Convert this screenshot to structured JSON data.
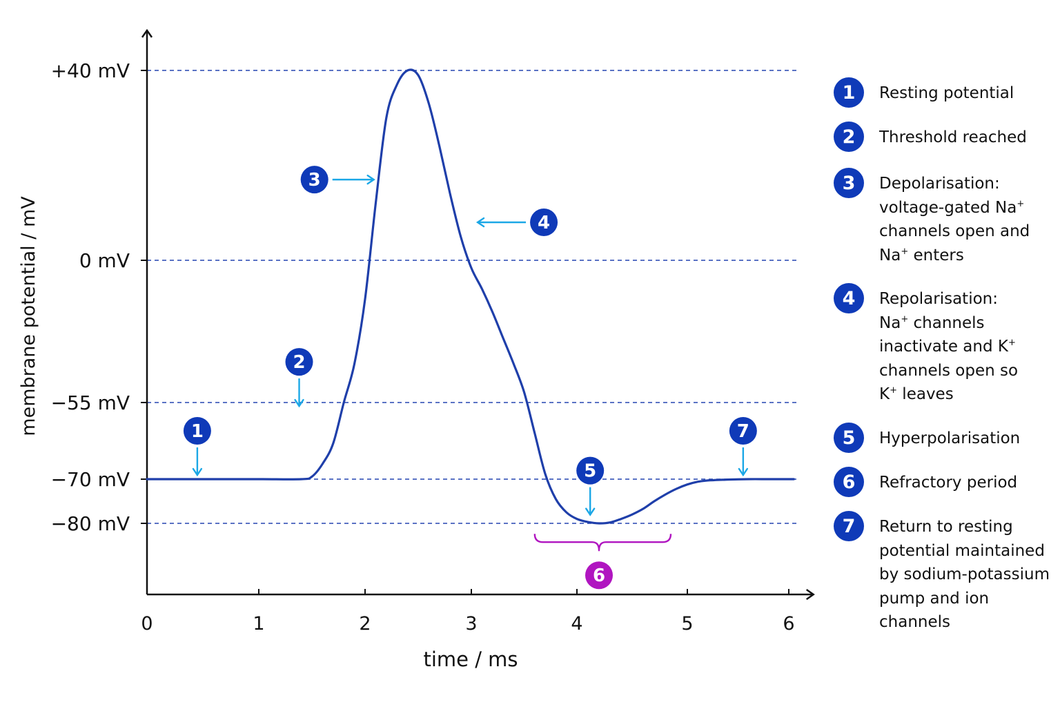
{
  "chart_data": {
    "type": "line",
    "xlabel": "time / ms",
    "ylabel": "membrane potential / mV",
    "xlim": [
      0,
      6.1
    ],
    "ylim": [
      -95,
      50
    ],
    "x_ticks": [
      "0",
      "1",
      "2",
      "3",
      "4",
      "5",
      "6"
    ],
    "y_ticks": [
      {
        "value": 40,
        "label": "+40 mV"
      },
      {
        "value": 0,
        "label": "0 mV"
      },
      {
        "value": -55,
        "label": "−55 mV"
      },
      {
        "value": -70,
        "label": "−70 mV"
      },
      {
        "value": -80,
        "label": "−80 mV"
      }
    ],
    "reference_lines": [
      40,
      0,
      -55,
      -70,
      -80
    ],
    "grid": false,
    "series": [
      {
        "x": [
          0,
          0.5,
          1.0,
          1.4,
          1.5,
          1.6,
          1.7,
          1.8,
          1.9,
          2.0,
          2.1,
          2.2,
          2.3,
          2.4,
          2.5,
          2.6,
          2.7,
          2.8,
          2.9,
          3.0,
          3.1,
          3.2,
          3.3,
          3.4,
          3.5,
          3.6,
          3.7,
          3.8,
          3.9,
          4.0,
          4.1,
          4.2,
          4.3,
          4.4,
          4.5,
          4.6,
          4.7,
          4.8,
          4.9,
          5.0,
          5.1,
          5.2,
          5.4,
          5.6,
          5.8,
          6.0,
          6.05
        ],
        "y": [
          -70,
          -70,
          -70,
          -70,
          -69.5,
          -67,
          -63,
          -55,
          -40,
          -15,
          12,
          30,
          37,
          40,
          39,
          33,
          24,
          14,
          5,
          -3,
          -11,
          -20,
          -30,
          -40,
          -51,
          -61,
          -69,
          -74.5,
          -77.5,
          -79,
          -79.7,
          -80,
          -79.8,
          -79,
          -78,
          -76.7,
          -75,
          -73.5,
          -72.2,
          -71.2,
          -70.6,
          -70.3,
          -70.1,
          -70,
          -70,
          -70,
          -70
        ]
      }
    ],
    "markers": [
      {
        "num": "1",
        "x": 0.45,
        "y": -70,
        "arrow": "down"
      },
      {
        "num": "2",
        "x": 1.38,
        "y": -56.5,
        "arrow": "down"
      },
      {
        "num": "3",
        "x": 2.05,
        "y": 17,
        "arrow": "right"
      },
      {
        "num": "4",
        "x": 3.02,
        "y": 8,
        "arrow": "left"
      },
      {
        "num": "5",
        "x": 4.12,
        "y": -79,
        "arrow": "down"
      },
      {
        "num": "6",
        "x": 4.2,
        "y": -82.8,
        "arrow": "brace",
        "x_from": 3.6,
        "x_to": 4.85
      },
      {
        "num": "7",
        "x": 5.55,
        "y": -70,
        "arrow": "down"
      }
    ],
    "colors": {
      "curve": "#1f3faa",
      "badge": "#0f3ab8",
      "arrow": "#1ba7e6",
      "refractory": "#b015c0",
      "dashed": "#2343b0",
      "axis": "#111111"
    }
  },
  "legend": [
    {
      "num": "1",
      "lines": [
        [
          {
            "t": "Resting potential"
          }
        ]
      ]
    },
    {
      "num": "2",
      "lines": [
        [
          {
            "t": "Threshold reached"
          }
        ]
      ]
    },
    {
      "num": "3",
      "lines": [
        [
          {
            "t": "Depolarisation:"
          }
        ],
        [
          {
            "t": "voltage-gated Na"
          },
          {
            "t": "+",
            "sup": true
          }
        ],
        [
          {
            "t": "channels open and"
          }
        ],
        [
          {
            "t": "Na"
          },
          {
            "t": "+",
            "sup": true
          },
          {
            "t": " enters"
          }
        ]
      ]
    },
    {
      "num": "4",
      "lines": [
        [
          {
            "t": "Repolarisation:"
          }
        ],
        [
          {
            "t": "Na"
          },
          {
            "t": "+",
            "sup": true
          },
          {
            "t": " channels"
          }
        ],
        [
          {
            "t": "inactivate and K"
          },
          {
            "t": "+",
            "sup": true
          }
        ],
        [
          {
            "t": "channels open so"
          }
        ],
        [
          {
            "t": "K"
          },
          {
            "t": "+",
            "sup": true
          },
          {
            "t": " leaves"
          }
        ]
      ]
    },
    {
      "num": "5",
      "lines": [
        [
          {
            "t": "Hyperpolarisation"
          }
        ]
      ]
    },
    {
      "num": "6",
      "lines": [
        [
          {
            "t": "Refractory period"
          }
        ]
      ]
    },
    {
      "num": "7",
      "lines": [
        [
          {
            "t": "Return to resting"
          }
        ],
        [
          {
            "t": "potential maintained"
          }
        ],
        [
          {
            "t": "by sodium-potassium"
          }
        ],
        [
          {
            "t": "pump and ion"
          }
        ],
        [
          {
            "t": "channels"
          }
        ]
      ]
    }
  ]
}
